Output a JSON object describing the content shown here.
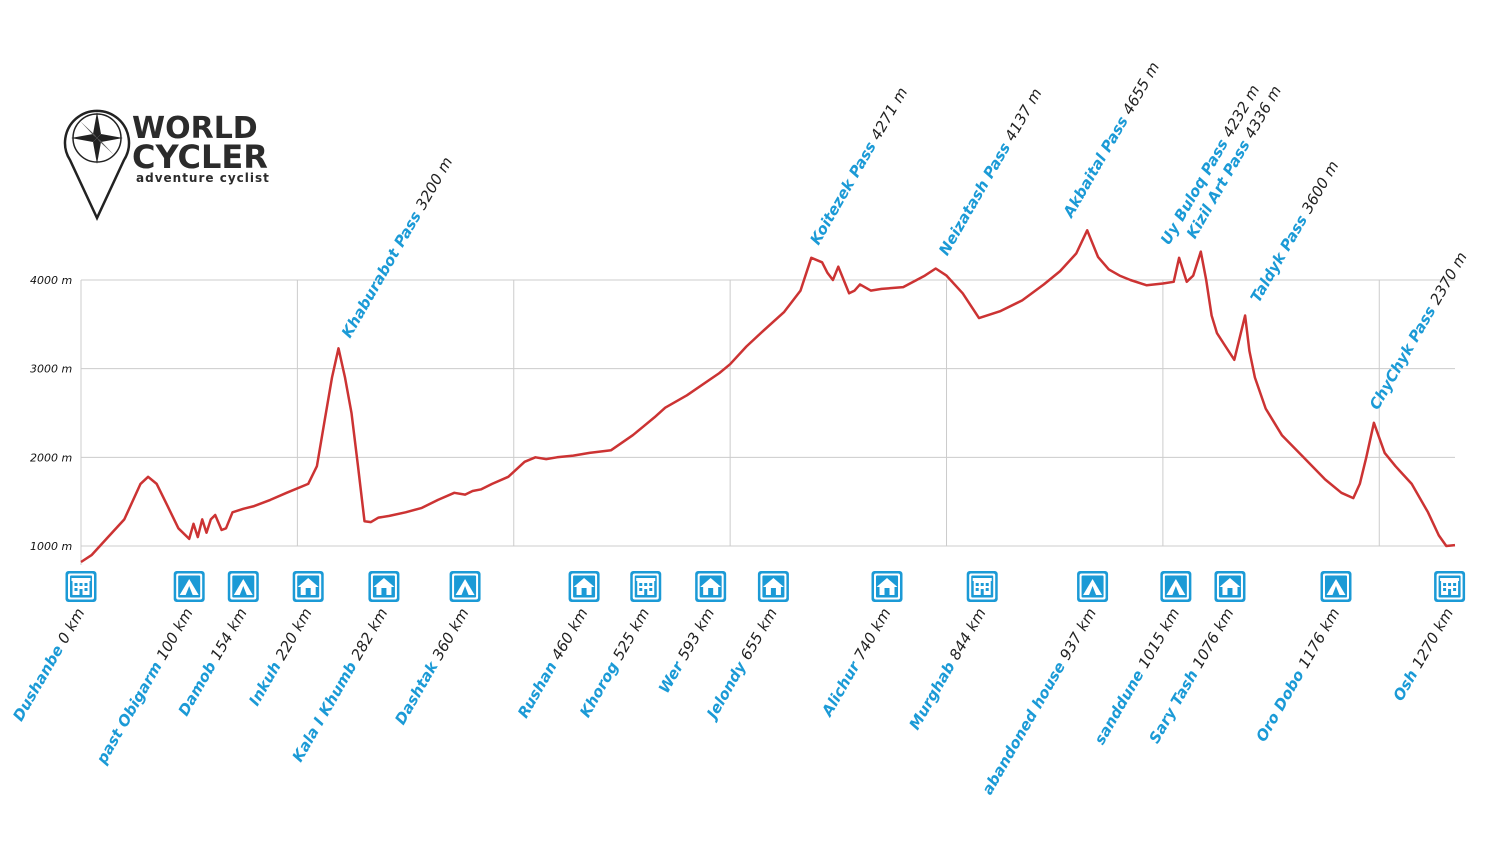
{
  "logo": {
    "line1": "WORLD",
    "line2": "CYCLER",
    "tagline": "adventure cyclist",
    "icon": "compass-map-pin-icon"
  },
  "colors": {
    "profile": "#cc3333",
    "accent": "#1b9ad6",
    "grid": "#cccccc",
    "label_value": "#222222"
  },
  "chart_data": {
    "type": "line",
    "title": "",
    "xlabel": "",
    "ylabel": "",
    "xlim": [
      0,
      1270
    ],
    "ylim": [
      800,
      4000
    ],
    "yticks": [
      {
        "value": 1000,
        "label": "1000 m"
      },
      {
        "value": 2000,
        "label": "2000 m"
      },
      {
        "value": 3000,
        "label": "3000 m"
      },
      {
        "value": 4000,
        "label": "4000 m"
      }
    ],
    "x_gridlines_km": [
      200,
      400,
      600,
      800,
      1000,
      1200
    ],
    "grid": true,
    "series": [
      {
        "x": [
          0,
          10,
          25,
          40,
          55,
          62,
          70,
          80,
          90,
          100,
          104,
          108,
          112,
          116,
          120,
          124,
          130,
          134,
          140,
          150,
          160,
          175,
          190,
          210,
          218,
          225,
          232,
          238,
          244,
          250,
          256,
          262,
          268,
          275,
          285,
          300,
          315,
          330,
          345,
          355,
          362,
          370,
          380,
          395,
          410,
          420,
          430,
          440,
          455,
          470,
          490,
          510,
          520,
          530,
          540,
          560,
          590,
          600,
          615,
          630,
          650,
          665,
          675,
          685,
          690,
          695,
          700,
          705,
          710,
          715,
          720,
          730,
          740,
          760,
          780,
          790,
          800,
          815,
          830,
          850,
          870,
          890,
          905,
          920,
          930,
          940,
          950,
          960,
          970,
          985,
          1000,
          1010,
          1015,
          1022,
          1028,
          1035,
          1040,
          1045,
          1050,
          1058,
          1066,
          1072,
          1076,
          1080,
          1085,
          1095,
          1110,
          1130,
          1150,
          1165,
          1176,
          1182,
          1188,
          1195,
          1205,
          1215,
          1230,
          1245,
          1255,
          1262,
          1270
        ],
        "y": [
          820,
          900,
          1100,
          1300,
          1700,
          1780,
          1700,
          1450,
          1200,
          1080,
          1250,
          1100,
          1300,
          1150,
          1300,
          1350,
          1180,
          1200,
          1380,
          1420,
          1450,
          1520,
          1600,
          1700,
          1900,
          2400,
          2900,
          3230,
          2900,
          2500,
          1900,
          1280,
          1270,
          1320,
          1340,
          1380,
          1430,
          1520,
          1600,
          1580,
          1620,
          1640,
          1700,
          1780,
          1950,
          2000,
          1980,
          2000,
          2020,
          2050,
          2080,
          2250,
          2350,
          2450,
          2560,
          2700,
          2950,
          3050,
          3250,
          3420,
          3640,
          3880,
          4250,
          4200,
          4080,
          4000,
          4150,
          4000,
          3850,
          3880,
          3950,
          3880,
          3900,
          3920,
          4050,
          4130,
          4050,
          3850,
          3570,
          3650,
          3770,
          3950,
          4100,
          4300,
          4560,
          4260,
          4120,
          4050,
          4000,
          3940,
          3960,
          3980,
          4250,
          3980,
          4050,
          4320,
          4000,
          3600,
          3400,
          3250,
          3100,
          3400,
          3600,
          3200,
          2900,
          2550,
          2250,
          2000,
          1750,
          1600,
          1540,
          1700,
          2000,
          2390,
          2050,
          1900,
          1700,
          1380,
          1120,
          1000,
          1010
        ]
      }
    ],
    "passes": [
      {
        "name": "Khaburabot Pass",
        "value": "3200 m",
        "km": 245,
        "elev": 3200
      },
      {
        "name": "Koitezek Pass",
        "value": "4271 m",
        "km": 678,
        "elev": 4250
      },
      {
        "name": "Neizatash Pass",
        "value": "4137 m",
        "km": 797,
        "elev": 4130
      },
      {
        "name": "Akbaital Pass",
        "value": "4655 m",
        "km": 912,
        "elev": 4560
      },
      {
        "name": "Uy Buloq Pass",
        "value": "4232 m",
        "km": 1002,
        "elev": 4250
      },
      {
        "name": "Kizil Art Pass",
        "value": "4336 m",
        "km": 1026,
        "elev": 4320
      },
      {
        "name": "Taldyk Pass",
        "value": "3600 m",
        "km": 1085,
        "elev": 3600
      },
      {
        "name": "ChyChyk Pass",
        "value": "2370 m",
        "km": 1195,
        "elev": 2390
      }
    ],
    "stops": [
      {
        "name": "Dushanbe",
        "value": "0 km",
        "km": 0,
        "icon": "hotel-icon"
      },
      {
        "name": "past Obigarm",
        "value": "100 km",
        "km": 100,
        "icon": "tent-icon"
      },
      {
        "name": "Damob",
        "value": "154 km",
        "km": 150,
        "icon": "tent-icon"
      },
      {
        "name": "Inkuh",
        "value": "220 km",
        "km": 210,
        "icon": "house-icon"
      },
      {
        "name": "Kala I Khumb",
        "value": "282 km",
        "km": 280,
        "icon": "house-icon"
      },
      {
        "name": "Dashtak",
        "value": "360 km",
        "km": 355,
        "icon": "tent-icon"
      },
      {
        "name": "Rushan",
        "value": "460 km",
        "km": 465,
        "icon": "house-icon"
      },
      {
        "name": "Khorog",
        "value": "525 km",
        "km": 522,
        "icon": "hotel-icon"
      },
      {
        "name": "Wer",
        "value": "593 km",
        "km": 582,
        "icon": "house-icon"
      },
      {
        "name": "Jelondy",
        "value": "655 km",
        "km": 640,
        "icon": "house-icon"
      },
      {
        "name": "Alichur",
        "value": "740 km",
        "km": 745,
        "icon": "house-icon"
      },
      {
        "name": "Murghab",
        "value": "844 km",
        "km": 833,
        "icon": "hotel-icon"
      },
      {
        "name": "abandoned house",
        "value": "937 km",
        "km": 935,
        "icon": "tent-icon"
      },
      {
        "name": "sanddune",
        "value": "1015 km",
        "km": 1012,
        "icon": "tent-icon"
      },
      {
        "name": "Sary Tash",
        "value": "1076 km",
        "km": 1062,
        "icon": "house-icon"
      },
      {
        "name": "Oro Dobo",
        "value": "1176 km",
        "km": 1160,
        "icon": "tent-icon"
      },
      {
        "name": "Osh",
        "value": "1270 km",
        "km": 1265,
        "icon": "hotel-icon"
      }
    ]
  }
}
